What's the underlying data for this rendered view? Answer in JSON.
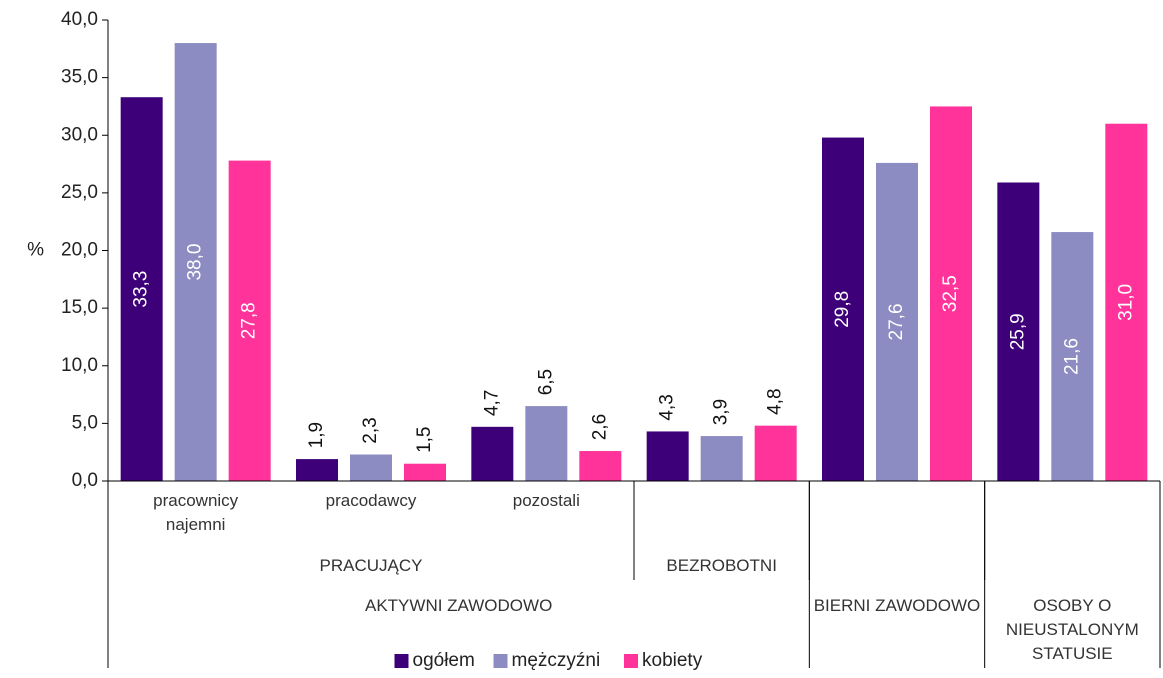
{
  "chart_data": {
    "type": "bar",
    "y_label": "%",
    "categories": [
      "pracownicy najemni",
      "pracodawcy",
      "pozostali",
      null,
      null,
      null
    ],
    "category_levels": [
      [
        {
          "label": "PRACUJĄCY",
          "span": 3
        },
        {
          "label": "BEZROBOTNI",
          "span": 1
        },
        {
          "label": null,
          "span": 1
        },
        {
          "label": null,
          "span": 1
        }
      ],
      [
        {
          "label": "AKTYWNI ZAWODOWO",
          "span": 4
        },
        {
          "label": "BIERNI ZAWODOWO",
          "span": 1
        },
        {
          "label": "OSOBY O NIEUSTALONYM STATUSIE",
          "span": 1
        }
      ]
    ],
    "series": [
      {
        "name": "ogółem",
        "color": "#3d0079",
        "values": [
          33.3,
          1.9,
          4.7,
          4.3,
          29.8,
          25.9
        ],
        "value_labels": [
          "33,3",
          "1,9",
          "4,7",
          "4,3",
          "29,8",
          "25,9"
        ]
      },
      {
        "name": "mężczyźni",
        "color": "#8c8cc2",
        "values": [
          38.0,
          2.3,
          6.5,
          3.9,
          27.6,
          21.6
        ],
        "value_labels": [
          "38,0",
          "2,3",
          "6,5",
          "3,9",
          "27,6",
          "21,6"
        ]
      },
      {
        "name": "kobiety",
        "color": "#ff3399",
        "values": [
          27.8,
          1.5,
          2.6,
          4.8,
          32.5,
          31.0
        ],
        "value_labels": [
          "27,8",
          "1,5",
          "2,6",
          "4,8",
          "32,5",
          "31,0"
        ]
      }
    ],
    "ylim": [
      0,
      40
    ],
    "yticks": [
      {
        "value": 0,
        "label": "0,0"
      },
      {
        "value": 5,
        "label": "5,0"
      },
      {
        "value": 10,
        "label": "10,0"
      },
      {
        "value": 15,
        "label": "15,0"
      },
      {
        "value": 20,
        "label": "20,0"
      },
      {
        "value": 25,
        "label": "25,0"
      },
      {
        "value": 30,
        "label": "30,0"
      },
      {
        "value": 35,
        "label": "35,0"
      },
      {
        "value": 40,
        "label": "40,0"
      }
    ],
    "grid": false,
    "legend": "bottom"
  }
}
